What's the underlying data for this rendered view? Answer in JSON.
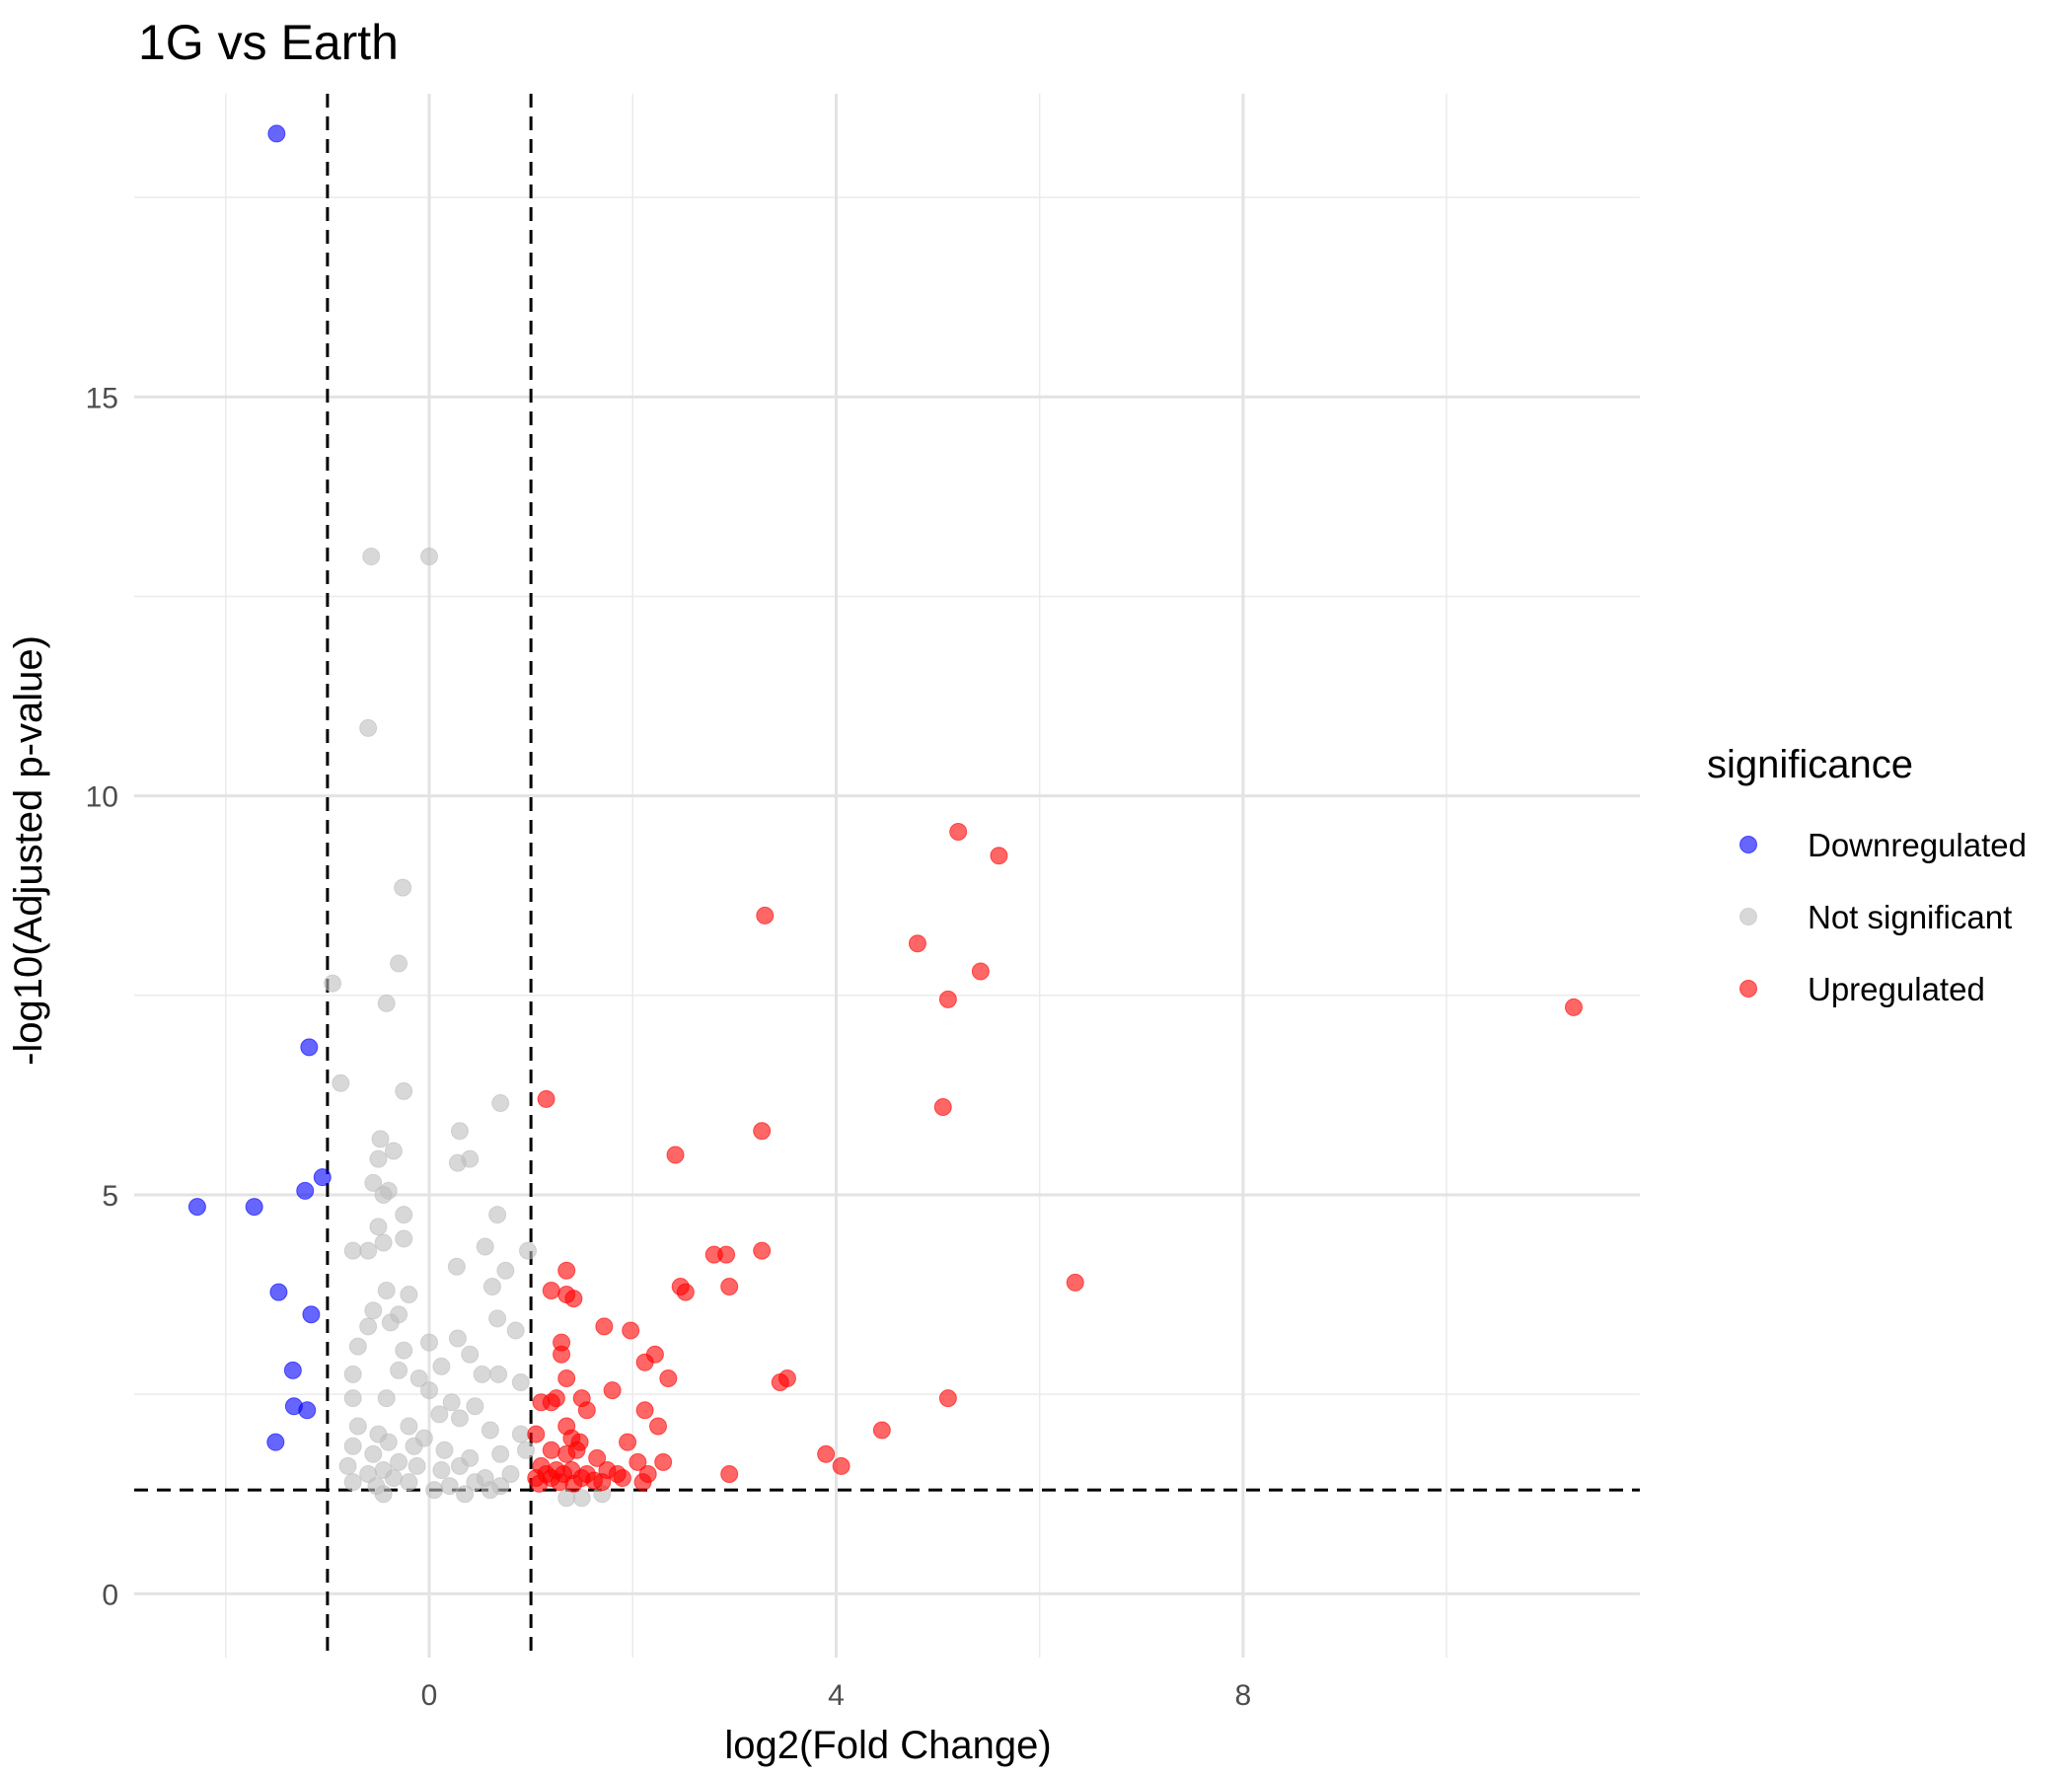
{
  "chart_data": {
    "type": "scatter",
    "title": "1G vs Earth",
    "xlabel": "log2(Fold Change)",
    "ylabel": "-log10(Adjusted p-value)",
    "xlim": [
      -2.9,
      11.9
    ],
    "ylim": [
      -0.8,
      18.8
    ],
    "x_ticks": [
      0,
      4,
      8
    ],
    "x_minor_ticks": [
      -2,
      2,
      6,
      10
    ],
    "y_ticks": [
      0,
      5,
      10,
      15
    ],
    "y_minor_ticks": [
      2.5,
      7.5,
      12.5,
      17.5
    ],
    "x_tick_labels": [
      "0",
      "4",
      "8"
    ],
    "y_tick_labels": [
      "0",
      "5",
      "10",
      "15"
    ],
    "grid": true,
    "thresholds": {
      "log2fc": [
        -1,
        1
      ],
      "neg_log10_padj": 1.3
    },
    "legend": {
      "title": "significance",
      "position": "right",
      "entries": [
        "Downregulated",
        "Not significant",
        "Upregulated"
      ]
    },
    "series": [
      {
        "name": "Downregulated",
        "color": "#0000ff",
        "points": [
          [
            -1.5,
            18.3
          ],
          [
            -1.18,
            6.85
          ],
          [
            -1.05,
            5.22
          ],
          [
            -1.22,
            5.05
          ],
          [
            -2.28,
            4.85
          ],
          [
            -1.72,
            4.85
          ],
          [
            -1.48,
            3.78
          ],
          [
            -1.16,
            3.5
          ],
          [
            -1.34,
            2.8
          ],
          [
            -1.33,
            2.35
          ],
          [
            -1.2,
            2.3
          ],
          [
            -1.51,
            1.9
          ]
        ]
      },
      {
        "name": "Not significant",
        "color": "#bebebe",
        "points": [
          [
            -0.57,
            13
          ],
          [
            0,
            13
          ],
          [
            -0.6,
            10.85
          ],
          [
            -0.26,
            8.85
          ],
          [
            -0.3,
            7.9
          ],
          [
            -0.95,
            7.65
          ],
          [
            -0.42,
            7.4
          ],
          [
            -0.25,
            6.3
          ],
          [
            -0.87,
            6.4
          ],
          [
            0.7,
            6.15
          ],
          [
            0.3,
            5.8
          ],
          [
            -0.48,
            5.7
          ],
          [
            -0.35,
            5.55
          ],
          [
            -0.5,
            5.45
          ],
          [
            0.4,
            5.45
          ],
          [
            0.28,
            5.4
          ],
          [
            -0.55,
            5.15
          ],
          [
            -0.4,
            5.05
          ],
          [
            -0.45,
            5
          ],
          [
            -0.25,
            4.75
          ],
          [
            0.67,
            4.75
          ],
          [
            -0.5,
            4.6
          ],
          [
            -0.75,
            4.3
          ],
          [
            -0.6,
            4.3
          ],
          [
            -0.45,
            4.4
          ],
          [
            -0.25,
            4.45
          ],
          [
            0.55,
            4.35
          ],
          [
            0.97,
            4.3
          ],
          [
            0.27,
            4.1
          ],
          [
            0.75,
            4.05
          ],
          [
            0.62,
            3.85
          ],
          [
            -0.42,
            3.8
          ],
          [
            -0.2,
            3.75
          ],
          [
            -0.55,
            3.55
          ],
          [
            -0.3,
            3.5
          ],
          [
            0.67,
            3.45
          ],
          [
            0.85,
            3.3
          ],
          [
            -0.6,
            3.35
          ],
          [
            -0.38,
            3.4
          ],
          [
            0.28,
            3.2
          ],
          [
            0.0,
            3.15
          ],
          [
            -0.7,
            3.1
          ],
          [
            -0.25,
            3.05
          ],
          [
            0.4,
            3.0
          ],
          [
            -0.75,
            2.75
          ],
          [
            -0.3,
            2.8
          ],
          [
            0.12,
            2.85
          ],
          [
            0.52,
            2.75
          ],
          [
            0.68,
            2.75
          ],
          [
            0.9,
            2.65
          ],
          [
            -0.75,
            2.45
          ],
          [
            -0.42,
            2.45
          ],
          [
            0.0,
            2.55
          ],
          [
            0.22,
            2.4
          ],
          [
            0.45,
            2.35
          ],
          [
            -0.7,
            2.1
          ],
          [
            -0.5,
            2.0
          ],
          [
            -0.2,
            2.1
          ],
          [
            0.3,
            2.2
          ],
          [
            0.6,
            2.05
          ],
          [
            0.9,
            2.0
          ],
          [
            -0.75,
            1.85
          ],
          [
            -0.55,
            1.75
          ],
          [
            -0.4,
            1.9
          ],
          [
            -0.15,
            1.85
          ],
          [
            0.15,
            1.8
          ],
          [
            0.4,
            1.7
          ],
          [
            0.7,
            1.75
          ],
          [
            0.95,
            1.8
          ],
          [
            -0.8,
            1.6
          ],
          [
            -0.6,
            1.5
          ],
          [
            -0.45,
            1.55
          ],
          [
            -0.3,
            1.65
          ],
          [
            -0.12,
            1.6
          ],
          [
            0.12,
            1.55
          ],
          [
            0.3,
            1.6
          ],
          [
            0.55,
            1.45
          ],
          [
            0.8,
            1.5
          ],
          [
            -0.75,
            1.4
          ],
          [
            -0.52,
            1.35
          ],
          [
            -0.35,
            1.45
          ],
          [
            -0.2,
            1.4
          ],
          [
            0.2,
            1.35
          ],
          [
            0.45,
            1.4
          ],
          [
            0.7,
            1.35
          ],
          [
            -0.45,
            1.25
          ],
          [
            0.35,
            1.25
          ],
          [
            0.6,
            1.3
          ],
          [
            1.35,
            1.2
          ],
          [
            1.5,
            1.2
          ],
          [
            1.7,
            1.25
          ],
          [
            -0.1,
            2.7
          ],
          [
            0.1,
            2.25
          ],
          [
            -0.05,
            1.95
          ],
          [
            0.05,
            1.3
          ]
        ]
      },
      {
        "name": "Upregulated",
        "color": "#ff0000",
        "points": [
          [
            11.25,
            7.35
          ],
          [
            5.2,
            9.55
          ],
          [
            5.6,
            9.25
          ],
          [
            3.3,
            8.5
          ],
          [
            4.8,
            8.15
          ],
          [
            5.42,
            7.8
          ],
          [
            5.1,
            7.45
          ],
          [
            5.05,
            6.1
          ],
          [
            1.15,
            6.2
          ],
          [
            3.27,
            5.8
          ],
          [
            2.42,
            5.5
          ],
          [
            6.35,
            3.9
          ],
          [
            2.8,
            4.25
          ],
          [
            2.92,
            4.25
          ],
          [
            3.27,
            4.3
          ],
          [
            1.35,
            4.05
          ],
          [
            1.2,
            3.8
          ],
          [
            1.35,
            3.75
          ],
          [
            1.42,
            3.7
          ],
          [
            2.47,
            3.85
          ],
          [
            2.52,
            3.78
          ],
          [
            2.95,
            3.85
          ],
          [
            1.72,
            3.35
          ],
          [
            1.98,
            3.3
          ],
          [
            1.3,
            3.15
          ],
          [
            1.3,
            3.0
          ],
          [
            2.22,
            3.0
          ],
          [
            2.12,
            2.9
          ],
          [
            1.35,
            2.7
          ],
          [
            2.35,
            2.7
          ],
          [
            3.45,
            2.65
          ],
          [
            3.52,
            2.7
          ],
          [
            1.1,
            2.4
          ],
          [
            1.2,
            2.4
          ],
          [
            1.25,
            2.45
          ],
          [
            1.5,
            2.45
          ],
          [
            1.8,
            2.55
          ],
          [
            5.1,
            2.45
          ],
          [
            1.55,
            2.3
          ],
          [
            2.12,
            2.3
          ],
          [
            1.35,
            2.1
          ],
          [
            2.25,
            2.1
          ],
          [
            1.05,
            2.0
          ],
          [
            1.4,
            1.95
          ],
          [
            1.48,
            1.9
          ],
          [
            1.95,
            1.9
          ],
          [
            4.45,
            2.05
          ],
          [
            1.2,
            1.8
          ],
          [
            1.45,
            1.8
          ],
          [
            1.35,
            1.75
          ],
          [
            1.65,
            1.7
          ],
          [
            2.05,
            1.65
          ],
          [
            2.3,
            1.65
          ],
          [
            3.9,
            1.75
          ],
          [
            4.05,
            1.6
          ],
          [
            1.1,
            1.6
          ],
          [
            1.25,
            1.55
          ],
          [
            1.4,
            1.55
          ],
          [
            1.55,
            1.5
          ],
          [
            1.75,
            1.55
          ],
          [
            1.85,
            1.5
          ],
          [
            2.15,
            1.5
          ],
          [
            2.95,
            1.5
          ],
          [
            1.05,
            1.45
          ],
          [
            1.2,
            1.45
          ],
          [
            1.32,
            1.5
          ],
          [
            1.5,
            1.45
          ],
          [
            1.62,
            1.42
          ],
          [
            1.9,
            1.45
          ],
          [
            2.1,
            1.4
          ],
          [
            1.08,
            1.38
          ],
          [
            1.28,
            1.4
          ],
          [
            1.7,
            1.4
          ],
          [
            1.42,
            1.38
          ],
          [
            1.15,
            1.5
          ]
        ]
      }
    ]
  }
}
